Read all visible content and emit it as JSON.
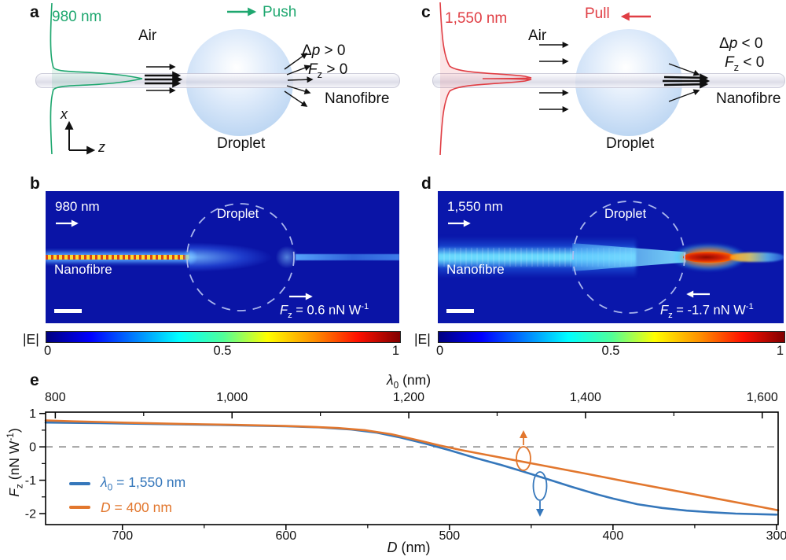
{
  "colors": {
    "green": "#1ea76f",
    "red": "#e03e44",
    "blue": "#3577bb",
    "orange": "#e2772e",
    "heatmap_background": "#0a14a6"
  },
  "panel_a": {
    "label": "a",
    "wavelength": "980 nm",
    "air": "Air",
    "direction": "Push",
    "dp": {
      "delta": "Δ",
      "var": "p",
      "rel": " > 0"
    },
    "fz": {
      "f": "F",
      "sub": "z",
      "rel": " > 0"
    },
    "nanofibre": "Nanofibre",
    "droplet": "Droplet",
    "axes": {
      "x": "x",
      "z": "z"
    }
  },
  "panel_b": {
    "label": "b",
    "wavelength": "980 nm",
    "droplet": "Droplet",
    "nanofibre": "Nanofibre",
    "force": {
      "f": "F",
      "sub": "z",
      "eq": " = 0.6 nN W",
      "sup": "-1"
    },
    "colorbar": {
      "label": "|E|",
      "ticks": [
        "0",
        "0.5",
        "1"
      ]
    }
  },
  "panel_c": {
    "label": "c",
    "wavelength": "1,550 nm",
    "air": "Air",
    "direction": "Pull",
    "dp": {
      "delta": "Δ",
      "var": "p",
      "rel": " < 0"
    },
    "fz": {
      "f": "F",
      "sub": "z",
      "rel": " < 0"
    },
    "nanofibre": "Nanofibre",
    "droplet": "Droplet"
  },
  "panel_d": {
    "label": "d",
    "wavelength": "1,550 nm",
    "droplet": "Droplet",
    "nanofibre": "Nanofibre",
    "force": {
      "f": "F",
      "sub": "z",
      "eq": " = -1.7 nN W",
      "sup": "-1"
    },
    "colorbar": {
      "label": "|E|",
      "ticks": [
        "0",
        "0.5",
        "1"
      ]
    }
  },
  "panel_e": {
    "label": "e",
    "top_title": {
      "sym": "λ",
      "sub": "0",
      "rest": " (nm)"
    },
    "bottom_title": {
      "var": "D",
      "rest": " (nm)"
    },
    "y_title": {
      "f": "F",
      "sub": "z",
      "mid": " (nN W",
      "sup": "-1",
      "end": ")"
    },
    "legend": [
      {
        "sym": "λ",
        "sub": "0",
        "rest": " = 1,550 nm"
      },
      {
        "var": "D",
        "rest": " = 400 nm"
      }
    ]
  },
  "chart_data": {
    "type": "line",
    "title": "",
    "top_axis": {
      "label": "λ0 (nm)",
      "tick_values": [
        800,
        1000,
        1200,
        1400,
        1600
      ],
      "tick_labels": [
        "800",
        "1,000",
        "1,200",
        "1,400",
        "1,600"
      ],
      "minor_ticks": [
        900,
        1100,
        1300,
        1500
      ],
      "range": [
        789,
        1618
      ]
    },
    "bottom_axis": {
      "label": "D (nm)",
      "tick_values": [
        700,
        600,
        500,
        400,
        300
      ],
      "tick_labels": [
        "700",
        "600",
        "500",
        "400",
        "300"
      ],
      "minor_ticks": [
        650,
        550,
        450,
        350
      ],
      "range": [
        747,
        299
      ]
    },
    "y_axis": {
      "label": "Fz (nN W-1)",
      "tick_values": [
        1,
        0,
        -1,
        -2
      ],
      "tick_labels": [
        "1",
        "0",
        "-1",
        "-2"
      ],
      "minor_ticks": [
        0.5,
        -0.5,
        -1.5
      ],
      "range": [
        1.04,
        -2.33
      ]
    },
    "zero_line_dashed": true,
    "legend_position": "lower-left",
    "series": [
      {
        "name": "λ0 = 1,550 nm",
        "color": "#3577bb",
        "x_axis": "bottom",
        "x": [
          747,
          720,
          700,
          680,
          660,
          640,
          620,
          600,
          580,
          560,
          545,
          530,
          515,
          500,
          485,
          470,
          455,
          440,
          425,
          410,
          400,
          385,
          370,
          355,
          340,
          325,
          310,
          300
        ],
        "y": [
          0.73,
          0.715,
          0.7,
          0.685,
          0.67,
          0.655,
          0.635,
          0.615,
          0.585,
          0.52,
          0.43,
          0.28,
          0.1,
          -0.1,
          -0.32,
          -0.52,
          -0.74,
          -0.97,
          -1.2,
          -1.42,
          -1.55,
          -1.72,
          -1.83,
          -1.91,
          -1.96,
          -2.0,
          -2.02,
          -2.03
        ]
      },
      {
        "name": "D = 400 nm",
        "color": "#e2772e",
        "x_axis": "top",
        "x": [
          789,
          820,
          850,
          880,
          910,
          940,
          970,
          1000,
          1030,
          1060,
          1090,
          1120,
          1150,
          1180,
          1210,
          1235,
          1260,
          1300,
          1350,
          1400,
          1450,
          1500,
          1550,
          1600,
          1618
        ],
        "y": [
          0.79,
          0.765,
          0.745,
          0.725,
          0.705,
          0.69,
          0.675,
          0.66,
          0.645,
          0.625,
          0.6,
          0.565,
          0.5,
          0.38,
          0.2,
          0.04,
          -0.1,
          -0.3,
          -0.55,
          -0.8,
          -1.06,
          -1.31,
          -1.56,
          -1.81,
          -1.9
        ]
      }
    ]
  }
}
